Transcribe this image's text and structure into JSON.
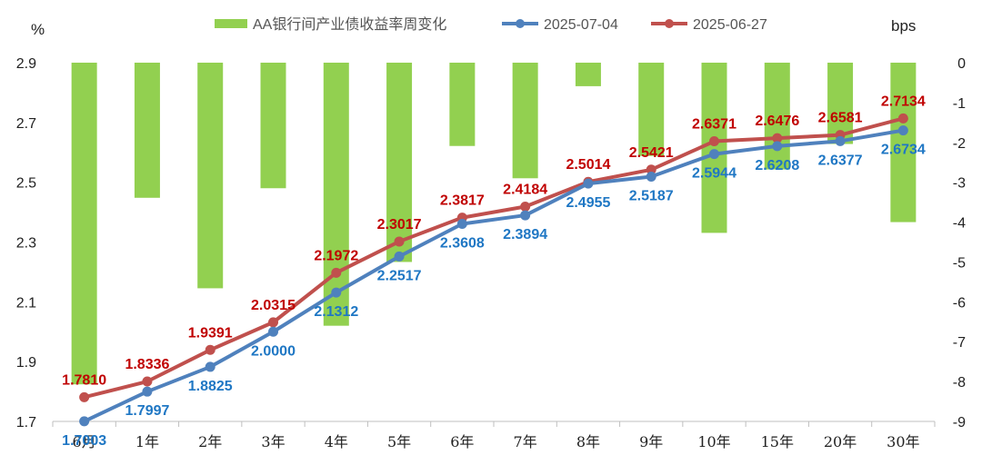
{
  "chart_data": {
    "type": "bar+line",
    "categories": [
      "6月",
      "1年",
      "2年",
      "3年",
      "4年",
      "5年",
      "6年",
      "7年",
      "8年",
      "9年",
      "10年",
      "15年",
      "20年",
      "30年"
    ],
    "left_axis": {
      "label": "%",
      "min": 1.7,
      "max": 2.9,
      "ticks": [
        "1.7",
        "1.9",
        "2.1",
        "2.3",
        "2.5",
        "2.7",
        "2.9"
      ]
    },
    "right_axis": {
      "label": "bps",
      "min": -9,
      "max": 0,
      "ticks": [
        "-9",
        "-8",
        "-7",
        "-6",
        "-5",
        "-4",
        "-3",
        "-2",
        "-1",
        "0"
      ]
    },
    "series": [
      {
        "name": "AA银行间产业债收益率周变化",
        "kind": "bar",
        "axis": "right",
        "color": "#92D050",
        "values": [
          -8.07,
          -3.39,
          -5.66,
          -3.15,
          -6.6,
          -5.0,
          -2.09,
          -2.9,
          -0.59,
          -2.34,
          -4.27,
          -2.68,
          -2.04,
          -4.0
        ]
      },
      {
        "name": "2025-07-04",
        "kind": "line",
        "axis": "left",
        "color": "#4F81BD",
        "label_color": "#1F77C4",
        "values": [
          1.7003,
          1.7997,
          1.8825,
          2.0,
          2.1312,
          2.2517,
          2.3608,
          2.3894,
          2.4955,
          2.5187,
          2.5944,
          2.6208,
          2.6377,
          2.6734
        ],
        "labels": [
          "1.7003",
          "1.7997",
          "1.8825",
          "2.0000",
          "2.1312",
          "2.2517",
          "2.3608",
          "2.3894",
          "2.4955",
          "2.5187",
          "2.5944",
          "2.6208",
          "2.6377",
          "2.6734"
        ]
      },
      {
        "name": "2025-06-27",
        "kind": "line",
        "axis": "left",
        "color": "#C0504D",
        "label_color": "#C00000",
        "values": [
          1.781,
          1.8336,
          1.9391,
          2.0315,
          2.1972,
          2.3017,
          2.3817,
          2.4184,
          2.5014,
          2.5421,
          2.6371,
          2.6476,
          2.6581,
          2.7134
        ],
        "labels": [
          "1.7810",
          "1.8336",
          "1.9391",
          "2.0315",
          "2.1972",
          "2.3017",
          "2.3817",
          "2.4184",
          "2.5014",
          "2.5421",
          "2.6371",
          "2.6476",
          "2.6581",
          "2.7134"
        ]
      }
    ]
  }
}
